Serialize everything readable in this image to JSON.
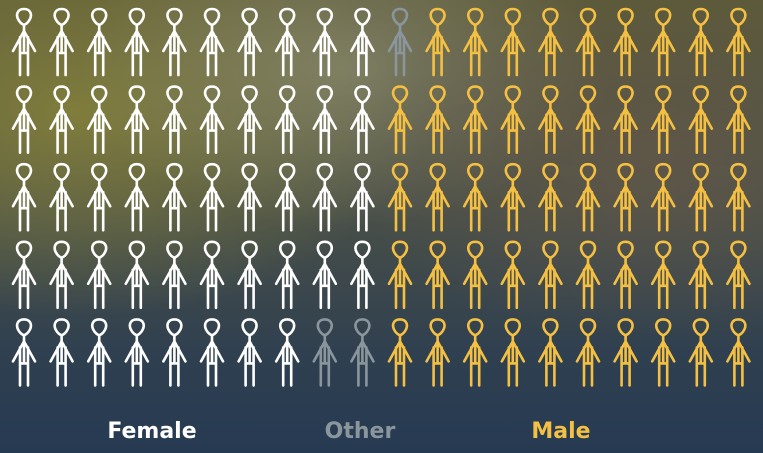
{
  "chart_data": {
    "type": "pictogram",
    "columns": 20,
    "rows": 5,
    "series": [
      {
        "name": "Female",
        "color": "#ffffff",
        "value": 48
      },
      {
        "name": "Other",
        "color": "#8a969c",
        "value": 3
      },
      {
        "name": "Male",
        "color": "#f4c043",
        "value": 49
      }
    ]
  }
}
